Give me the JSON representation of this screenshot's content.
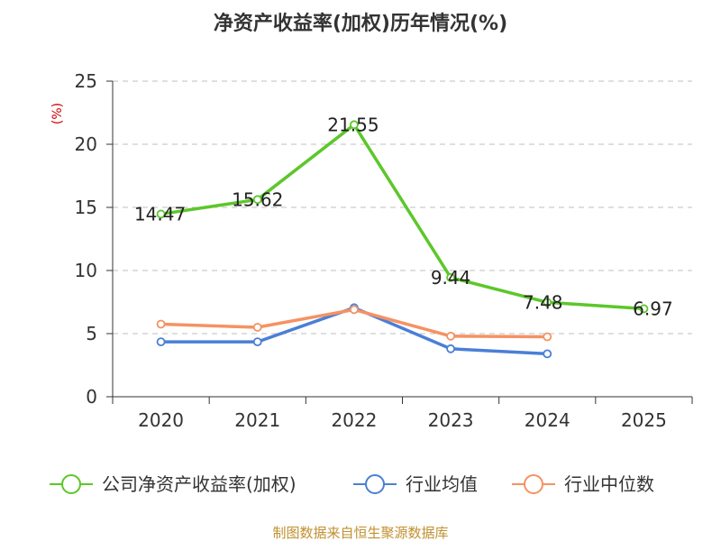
{
  "chart_data": {
    "type": "line",
    "title": "净资产收益率(加权)历年情况(%)",
    "ylabel": "(%)",
    "xlabel": "",
    "categories": [
      "2020",
      "2021",
      "2022",
      "2023",
      "2024",
      "2025"
    ],
    "ylim": [
      0,
      25
    ],
    "yticks": [
      0,
      5,
      10,
      15,
      20,
      25
    ],
    "grid": true,
    "legend_position": "bottom",
    "series": [
      {
        "name": "公司净资产收益率(加权)",
        "color": "#5cc72a",
        "values": [
          14.47,
          15.62,
          21.55,
          9.44,
          7.48,
          6.97
        ],
        "labels": [
          "14.47",
          "15.62",
          "21.55",
          "9.44",
          "7.48",
          "6.97"
        ],
        "show_labels": true
      },
      {
        "name": "行业均值",
        "color": "#4a7fd6",
        "values": [
          4.35,
          4.35,
          7.05,
          3.8,
          3.4,
          null
        ],
        "show_labels": false
      },
      {
        "name": "行业中位数",
        "color": "#f59263",
        "values": [
          5.75,
          5.5,
          6.9,
          4.8,
          4.75,
          null
        ],
        "show_labels": false
      }
    ],
    "source": "制图数据来自恒生聚源数据库"
  }
}
